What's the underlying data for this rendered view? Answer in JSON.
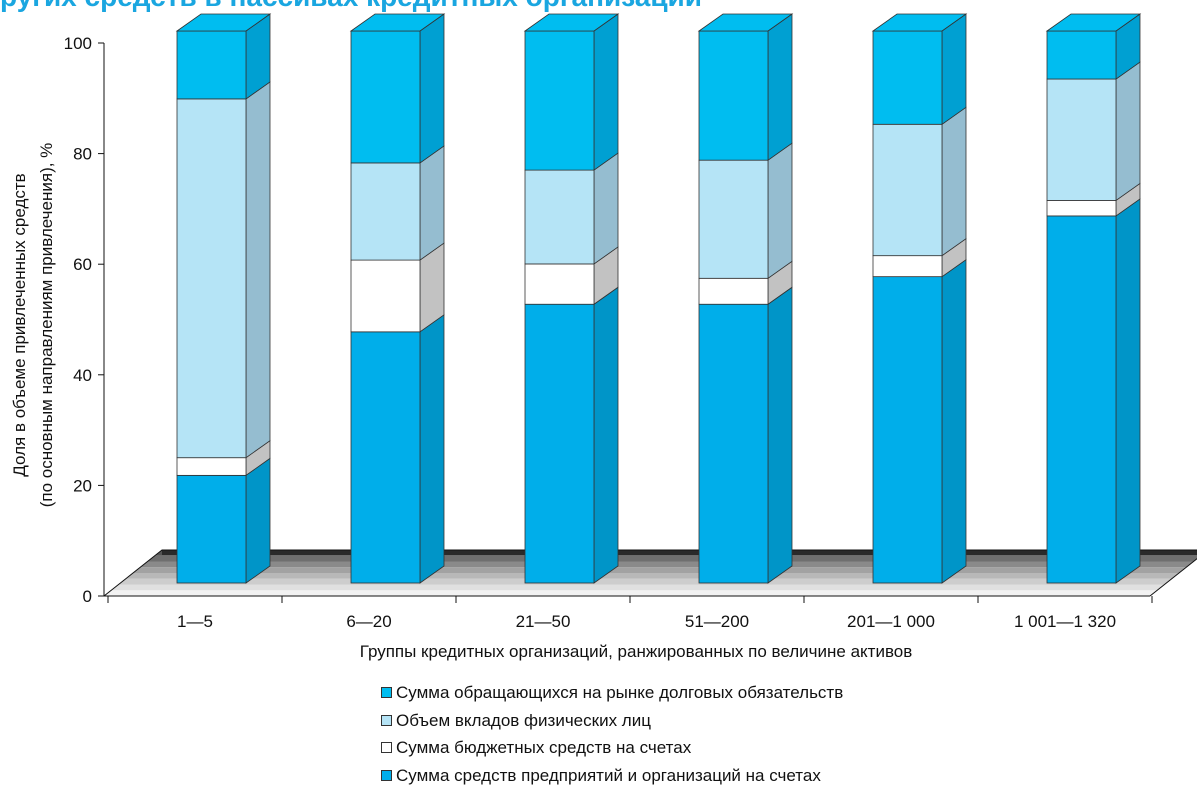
{
  "chart_data": {
    "type": "bar",
    "stacked": true,
    "title": "",
    "xlabel": "Группы кредитных организаций, ранжированных по величине активов",
    "ylabel_lines": [
      "Доля в  объеме привлеченных средств",
      "(по основным  направлениям привлечения), %"
    ],
    "ylim": [
      0,
      100
    ],
    "yticks": [
      0,
      20,
      40,
      60,
      80,
      100
    ],
    "categories": [
      "1—5",
      "6—20",
      "21—50",
      "51—200",
      "201—1 000",
      "1 001—1 320"
    ],
    "series": [
      {
        "name": "Сумма средств предприятий и организаций на счетах",
        "color": "#00aeea",
        "side_color": "#0095c8",
        "values": [
          19.5,
          45.5,
          50.5,
          50.5,
          55.5,
          66.5
        ]
      },
      {
        "name": "Сумма бюджетных средств на счетах",
        "color": "#ffffff",
        "side_color": "#c2c2c2",
        "values": [
          3.2,
          13.0,
          7.3,
          4.7,
          3.8,
          2.8
        ]
      },
      {
        "name": "Объем вкладов физических лиц",
        "color": "#b5e4f6",
        "side_color": "#95bdd0",
        "values": [
          65.0,
          17.6,
          17.0,
          21.4,
          23.8,
          22.0
        ]
      },
      {
        "name": "Сумма обращающихся на рынке долговых обязательств",
        "color": "#00bdf0",
        "side_color": "#00a0d2",
        "values": [
          12.3,
          23.9,
          25.2,
          23.4,
          16.9,
          8.7
        ]
      }
    ],
    "legend_order": [
      3,
      2,
      1,
      0
    ],
    "legend_position": "bottom",
    "grid": false
  }
}
